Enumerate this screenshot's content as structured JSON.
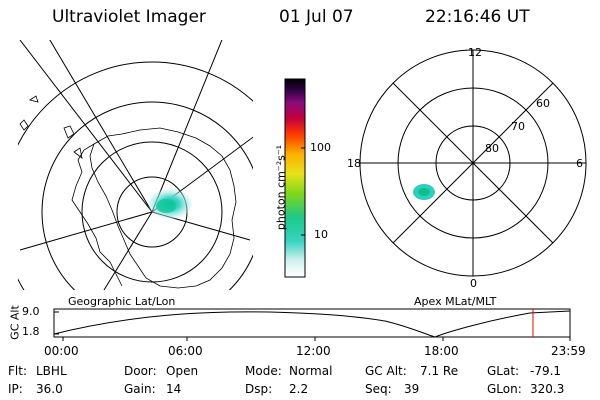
{
  "header": {
    "title": "Ultraviolet Imager",
    "date": "01 Jul 07",
    "time": "22:16:46 UT"
  },
  "left_panel": {
    "caption": "Geographic Lat/Lon"
  },
  "right_panel": {
    "caption": "Apex MLat/MLT",
    "mlt_labels": {
      "top": "12",
      "left": "18",
      "right": "6",
      "bottom": "0"
    },
    "mlat_labels": [
      "60",
      "70",
      "80"
    ]
  },
  "colorbar": {
    "unit": "photon cm⁻²s⁻¹",
    "tick_100": "100",
    "tick_10": "10",
    "scale": "log"
  },
  "timeline": {
    "ylabel": "GC Alt",
    "y_ticks": [
      "9.0",
      "1.8"
    ],
    "x_ticks": [
      "00:00",
      "06:00",
      "12:00",
      "18:00",
      "23:59"
    ],
    "marker_color": "#ff0000"
  },
  "info": {
    "row1": [
      {
        "label": "Flt:",
        "value": "LBHL"
      },
      {
        "label": "Door:",
        "value": "Open"
      },
      {
        "label": "Mode:",
        "value": "Normal"
      },
      {
        "label": "GC Alt:",
        "value": "7.1 Re"
      },
      {
        "label": "GLat:",
        "value": "-79.1"
      }
    ],
    "row2": [
      {
        "label": "IP:",
        "value": "36.0"
      },
      {
        "label": "Gain:",
        "value": "14"
      },
      {
        "label": "Dsp:",
        "value": "2.2"
      },
      {
        "label": "Seq:",
        "value": "39"
      },
      {
        "label": "GLon:",
        "value": "320.3"
      }
    ]
  }
}
